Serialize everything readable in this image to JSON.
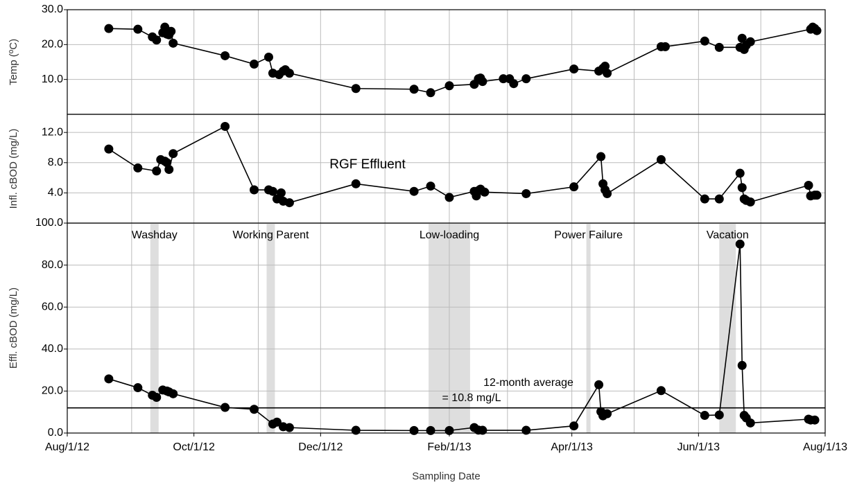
{
  "chart_data": [
    {
      "type": "line",
      "ylabel": "Temp (ºC)",
      "color": "#000000",
      "xlim": [
        "2012-08-01",
        "2013-08-01"
      ],
      "xgrid": [
        "2012-09-01",
        "2012-10-01",
        "2012-11-01",
        "2012-12-01",
        "2013-01-01",
        "2013-02-01",
        "2013-03-01",
        "2013-04-01",
        "2013-05-01",
        "2013-06-01",
        "2013-07-01"
      ],
      "ylim": [
        0,
        30
      ],
      "yticks": [
        {
          "value": 10,
          "label": "10.0"
        },
        {
          "value": 20,
          "label": "20.0"
        },
        {
          "value": 30,
          "label": "30.0"
        }
      ],
      "grid": true,
      "x": [
        "2012-08-21",
        "2012-09-04",
        "2012-09-11",
        "2012-09-13",
        "2012-09-16",
        "2012-09-17",
        "2012-09-18",
        "2012-09-19",
        "2012-09-20",
        "2012-09-21",
        "2012-10-16",
        "2012-10-30",
        "2012-11-06",
        "2012-11-08",
        "2012-11-11",
        "2012-11-13",
        "2012-11-14",
        "2012-11-16",
        "2012-12-18",
        "2013-01-15",
        "2013-01-23",
        "2013-02-01",
        "2013-02-13",
        "2013-02-15",
        "2013-02-16",
        "2013-02-17",
        "2013-02-27",
        "2013-03-02",
        "2013-03-04",
        "2013-03-10",
        "2013-04-02",
        "2013-04-14",
        "2013-04-16",
        "2013-04-17",
        "2013-04-18",
        "2013-05-14",
        "2013-05-16",
        "2013-06-04",
        "2013-06-11",
        "2013-06-21",
        "2013-06-22",
        "2013-06-23",
        "2013-06-24",
        "2013-06-26",
        "2013-07-25",
        "2013-07-26",
        "2013-07-27",
        "2013-07-28"
      ],
      "values": [
        24.6,
        24.4,
        22.2,
        21.3,
        23.4,
        25,
        23,
        22.8,
        23.8,
        20.4,
        16.8,
        14.4,
        16.4,
        11.8,
        11.4,
        12.4,
        12.8,
        11.8,
        7.4,
        7.2,
        6.2,
        8.2,
        8.6,
        10.2,
        10.4,
        9.4,
        10.2,
        10.2,
        8.8,
        10.2,
        13,
        12.4,
        13.2,
        13.8,
        11.8,
        19.4,
        19.4,
        21,
        19.2,
        19.2,
        21.8,
        18.6,
        19.8,
        20.8,
        24.4,
        25,
        24.6,
        24
      ]
    },
    {
      "type": "line",
      "ylabel": "Infl. cBOD (mg/L)",
      "color": "#000000",
      "annotations": [
        "RGF Effluent"
      ],
      "xlim": [
        "2012-08-01",
        "2013-08-01"
      ],
      "xgrid": [
        "2012-09-01",
        "2012-10-01",
        "2012-11-01",
        "2012-12-01",
        "2013-01-01",
        "2013-02-01",
        "2013-03-01",
        "2013-04-01",
        "2013-05-01",
        "2013-06-01",
        "2013-07-01"
      ],
      "ylim": [
        0,
        14.4
      ],
      "yticks": [
        {
          "value": 4,
          "label": "4.0"
        },
        {
          "value": 8,
          "label": "8.0"
        },
        {
          "value": 12,
          "label": "12.0"
        }
      ],
      "grid": true,
      "x": [
        "2012-08-21",
        "2012-09-04",
        "2012-09-13",
        "2012-09-15",
        "2012-09-17",
        "2012-09-18",
        "2012-09-19",
        "2012-09-21",
        "2012-10-16",
        "2012-10-30",
        "2012-11-06",
        "2012-11-08",
        "2012-11-10",
        "2012-11-12",
        "2012-11-13",
        "2012-11-16",
        "2012-12-18",
        "2013-01-15",
        "2013-01-23",
        "2013-02-01",
        "2013-02-13",
        "2013-02-14",
        "2013-02-15",
        "2013-02-16",
        "2013-02-18",
        "2013-03-10",
        "2013-04-02",
        "2013-04-15",
        "2013-04-16",
        "2013-04-17",
        "2013-04-18",
        "2013-05-14",
        "2013-06-04",
        "2013-06-11",
        "2013-06-21",
        "2013-06-22",
        "2013-06-23",
        "2013-06-24",
        "2013-06-26",
        "2013-07-24",
        "2013-07-25",
        "2013-07-27",
        "2013-07-28"
      ],
      "values": [
        9.8,
        7.3,
        6.9,
        8.4,
        8.2,
        8.0,
        7.1,
        9.2,
        12.8,
        4.4,
        4.4,
        4.2,
        3.2,
        4.0,
        2.9,
        2.7,
        5.2,
        4.2,
        4.9,
        3.4,
        4.2,
        3.6,
        4.3,
        4.5,
        4.1,
        3.9,
        4.8,
        8.8,
        5.2,
        4.4,
        3.9,
        8.4,
        3.2,
        3.2,
        6.6,
        4.7,
        3.2,
        3.0,
        2.8,
        5.0,
        3.6,
        3.7,
        3.7
      ]
    },
    {
      "type": "line",
      "ylabel": "Effl. cBOD (mg/L)",
      "xlabel": "Sampling Date",
      "color": "#000000",
      "annotations": [
        "12-month average",
        "= 10.8 mg/L"
      ],
      "hline": 12,
      "regions": [
        {
          "label": "Washday",
          "start": "2012-09-10",
          "end": "2012-09-14"
        },
        {
          "label": "Working Parent",
          "start": "2012-11-05",
          "end": "2012-11-09"
        },
        {
          "label": "Low-loading",
          "start": "2013-01-22",
          "end": "2013-02-11"
        },
        {
          "label": "Power Failure",
          "start": "2013-04-08",
          "end": "2013-04-10"
        },
        {
          "label": "Vacation",
          "start": "2013-06-11",
          "end": "2013-06-19"
        }
      ],
      "xlim": [
        "2012-08-01",
        "2013-08-01"
      ],
      "xticks": [
        {
          "value": "2012-08-01",
          "label": "Aug/1/12"
        },
        {
          "value": "2012-10-01",
          "label": "Oct/1/12"
        },
        {
          "value": "2012-12-01",
          "label": "Dec/1/12"
        },
        {
          "value": "2013-02-01",
          "label": "Feb/1/13"
        },
        {
          "value": "2013-04-01",
          "label": "Apr/1/13"
        },
        {
          "value": "2013-06-01",
          "label": "Jun/1/13"
        },
        {
          "value": "2013-08-01",
          "label": "Aug/1/13"
        }
      ],
      "xgrid": [
        "2012-09-01",
        "2012-10-01",
        "2012-11-01",
        "2012-12-01",
        "2013-01-01",
        "2013-02-01",
        "2013-03-01",
        "2013-04-01",
        "2013-05-01",
        "2013-06-01",
        "2013-07-01"
      ],
      "ylim": [
        0,
        100
      ],
      "yticks": [
        {
          "value": 0,
          "label": "0.0"
        },
        {
          "value": 20,
          "label": "20.0"
        },
        {
          "value": 40,
          "label": "40.0"
        },
        {
          "value": 60,
          "label": "60.0"
        },
        {
          "value": 80,
          "label": "80.0"
        },
        {
          "value": 100,
          "label": "100.0"
        }
      ],
      "grid": true,
      "x": [
        "2012-08-21",
        "2012-09-04",
        "2012-09-11",
        "2012-09-13",
        "2012-09-16",
        "2012-09-18",
        "2012-09-19",
        "2012-09-21",
        "2012-10-16",
        "2012-10-30",
        "2012-11-08",
        "2012-11-10",
        "2012-11-13",
        "2012-11-16",
        "2012-12-18",
        "2013-01-15",
        "2013-01-23",
        "2013-02-01",
        "2013-02-13",
        "2013-02-15",
        "2013-02-17",
        "2013-03-10",
        "2013-04-02",
        "2013-04-14",
        "2013-04-15",
        "2013-04-16",
        "2013-04-18",
        "2013-05-14",
        "2013-06-04",
        "2013-06-11",
        "2013-06-21",
        "2013-06-22",
        "2013-06-23",
        "2013-06-24",
        "2013-06-26",
        "2013-07-24",
        "2013-07-25",
        "2013-07-27"
      ],
      "values": [
        25.8,
        21.6,
        18,
        17,
        20.5,
        20,
        19.6,
        18.7,
        12.2,
        11.3,
        4.3,
        5.2,
        3,
        2.6,
        1.3,
        1.2,
        1.2,
        1.2,
        2.6,
        1.4,
        1.3,
        1.3,
        3.4,
        23,
        10.2,
        8.2,
        9.2,
        20.2,
        8.4,
        8.6,
        90,
        32.2,
        8.4,
        7.2,
        4.8,
        6.6,
        6.2,
        6.2
      ]
    }
  ]
}
